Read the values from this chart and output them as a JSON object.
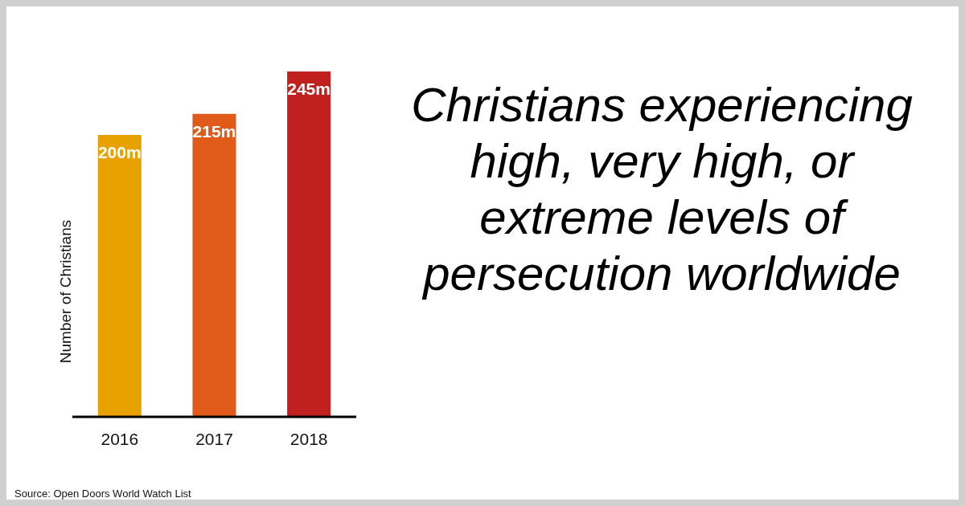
{
  "chart_data": {
    "type": "bar",
    "title": "Christians experiencing high, very high, or extreme levels of persecution worldwide",
    "ylabel": "Number of Christians",
    "categories": [
      "2016",
      "2017",
      "2018"
    ],
    "values": [
      200,
      215,
      245
    ],
    "value_labels": [
      "200m",
      "215m",
      "245m"
    ],
    "colors": [
      "#e8a200",
      "#e05a1a",
      "#c0201e"
    ],
    "annotations": [
      "Source: Open Doors World Watch List"
    ],
    "grid": false,
    "legend": false
  }
}
